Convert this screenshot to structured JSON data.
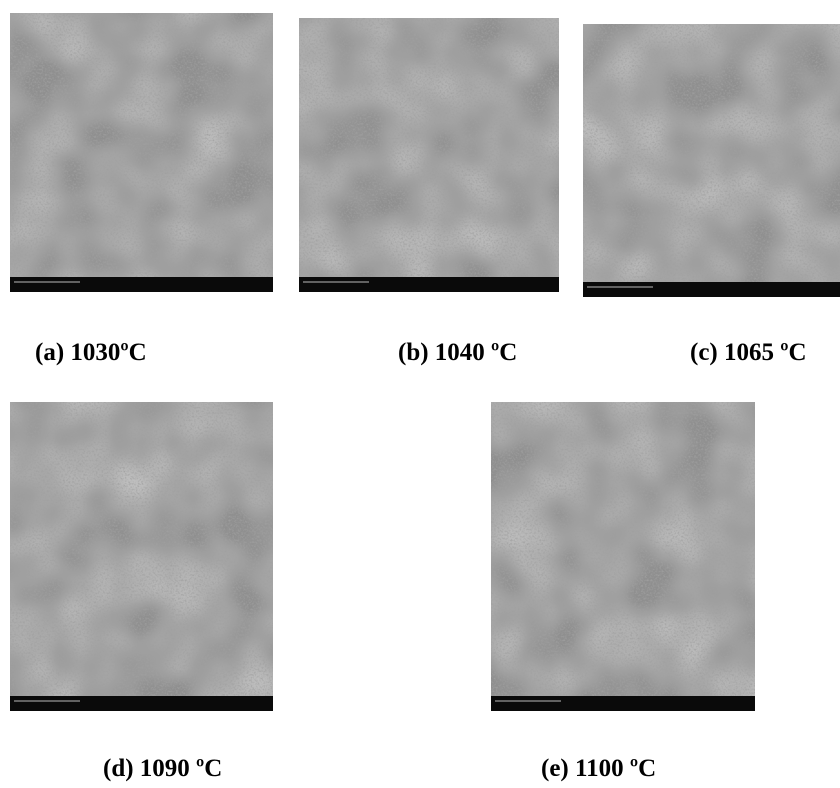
{
  "figure": {
    "panels": [
      {
        "caption": "(a) 1030ºC"
      },
      {
        "caption": "(b) 1040 ºC"
      },
      {
        "caption": "(c) 1065 ºC"
      },
      {
        "caption": "(d) 1090 ºC"
      },
      {
        "caption": "(e) 1100 ºC"
      }
    ]
  }
}
